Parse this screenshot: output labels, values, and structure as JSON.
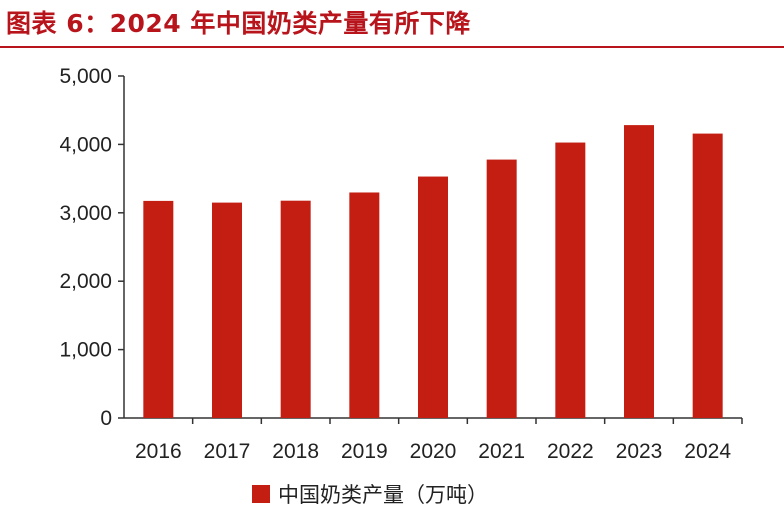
{
  "title": "图表 6：2024 年中国奶类产量有所下降",
  "colors": {
    "accent": "#b8141c",
    "bar": "#c41e12",
    "axis": "#333333"
  },
  "chart_data": {
    "type": "bar",
    "categories": [
      "2016",
      "2017",
      "2018",
      "2019",
      "2020",
      "2021",
      "2022",
      "2023",
      "2024"
    ],
    "series": [
      {
        "name": "中国奶类产量（万吨）",
        "values": [
          3174,
          3149,
          3177,
          3297,
          3530,
          3778,
          4027,
          4282,
          4158
        ]
      }
    ],
    "ylim": [
      0,
      5000
    ],
    "yticks": [
      0,
      1000,
      2000,
      3000,
      4000,
      5000
    ],
    "ytick_labels": [
      "0",
      "1,000",
      "2,000",
      "3,000",
      "4,000",
      "5,000"
    ],
    "legend": {
      "position": "bottom",
      "label": "中国奶类产量（万吨）"
    },
    "grid": false
  }
}
